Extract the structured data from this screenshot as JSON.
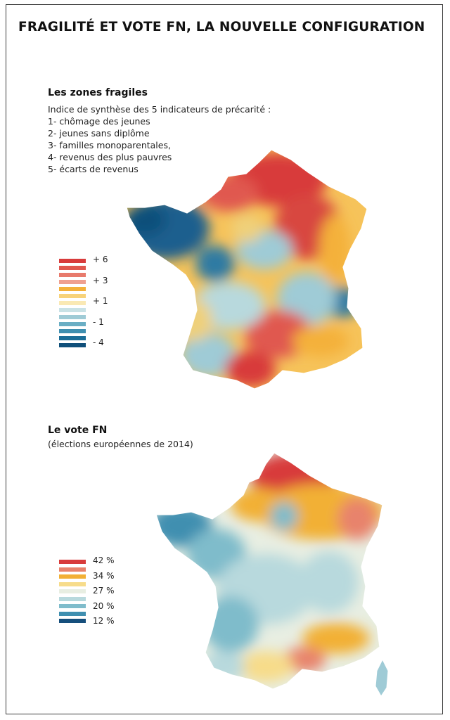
{
  "title": "FRAGILITÉ ET VOTE FN, LA NOUVELLE CONFIGURATION",
  "map1": {
    "title": "Les zones fragiles",
    "subtitle": "Indice de synthèse des 5 indicateurs de précarité :",
    "indicators": [
      "1- chômage des jeunes",
      "2- jeunes sans diplôme",
      "3- familles monoparentales,",
      "4- revenus des plus pauvres",
      "5- écarts de revenus"
    ],
    "legend": {
      "colors": [
        "#d83b3b",
        "#e0584f",
        "#e87a6c",
        "#efa090",
        "#f4b13a",
        "#f8d37a",
        "#fae9b4",
        "#c9e2e6",
        "#9fcbd6",
        "#6aaec4",
        "#3f8fb0",
        "#1b6d97",
        "#0f4f7a"
      ],
      "labels": [
        "+ 6",
        "+ 3",
        "+ 1",
        "- 1",
        "- 4"
      ]
    }
  },
  "map2": {
    "title": "Le vote FN",
    "subtitle": "(élections européennes de 2014)",
    "legend": {
      "colors": [
        "#d83b3b",
        "#e8836c",
        "#f2b035",
        "#f7dc8a",
        "#e8eee2",
        "#b8d9dd",
        "#7fbccb",
        "#3f8fb0",
        "#164f7c"
      ],
      "labels": [
        "42 %",
        "34 %",
        "27 %",
        "20 %",
        "12 %"
      ]
    }
  }
}
